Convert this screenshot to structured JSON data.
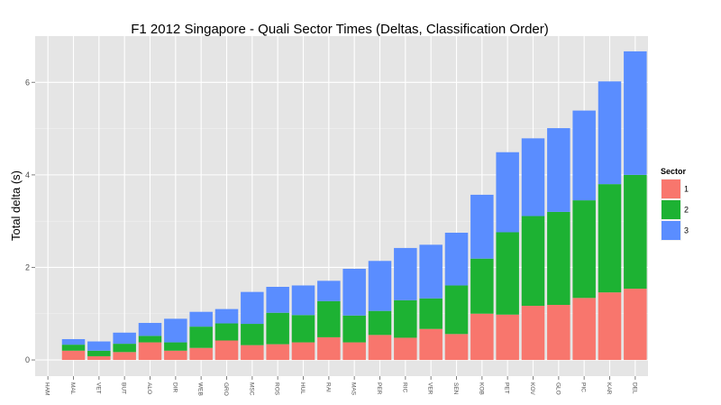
{
  "chart_data": {
    "type": "bar",
    "stacked": true,
    "title": "F1  2012 Singapore - Quali Sector Times (Deltas, Classification Order)",
    "xlabel": "",
    "ylabel": "Total delta (s)",
    "ylim": [
      -0.35,
      7.0
    ],
    "yticks": [
      0,
      2,
      4,
      6
    ],
    "grid": true,
    "categories": [
      "HAM",
      "MAL",
      "VET",
      "BUT",
      "ALO",
      "DIR",
      "WEB",
      "GRO",
      "MSC",
      "ROS",
      "HUL",
      "RAI",
      "MAS",
      "PER",
      "RIC",
      "VER",
      "SEN",
      "KOB",
      "PET",
      "KOV",
      "GLO",
      "PIC",
      "KAR",
      "DEL"
    ],
    "series": [
      {
        "name": "1",
        "color": "#F8766D",
        "values": [
          0.0,
          0.2,
          0.08,
          0.17,
          0.38,
          0.2,
          0.26,
          0.42,
          0.32,
          0.34,
          0.38,
          0.49,
          0.38,
          0.54,
          0.48,
          0.67,
          0.56,
          1.0,
          0.98,
          1.17,
          1.19,
          1.34,
          1.46,
          1.54
        ]
      },
      {
        "name": "2",
        "color": "#1DB233",
        "values": [
          0.0,
          0.13,
          0.12,
          0.18,
          0.14,
          0.18,
          0.46,
          0.37,
          0.46,
          0.68,
          0.59,
          0.78,
          0.58,
          0.52,
          0.81,
          0.66,
          1.05,
          1.19,
          1.78,
          1.94,
          2.01,
          2.11,
          2.34,
          2.46
        ]
      },
      {
        "name": "3",
        "color": "#5A8DFF",
        "values": [
          0.0,
          0.12,
          0.2,
          0.24,
          0.28,
          0.51,
          0.32,
          0.31,
          0.69,
          0.56,
          0.64,
          0.44,
          1.01,
          1.08,
          1.13,
          1.16,
          1.14,
          1.38,
          1.73,
          1.68,
          1.81,
          1.94,
          2.22,
          2.67
        ]
      }
    ],
    "legend": {
      "title": "Sector",
      "position": "right",
      "entries": [
        "1",
        "2",
        "3"
      ]
    },
    "colors": {
      "panel": "#E5E5E5",
      "grid_major": "#FFFFFF",
      "grid_minor": "#F2F2F2",
      "tick_text": "#4D4D4D"
    }
  }
}
